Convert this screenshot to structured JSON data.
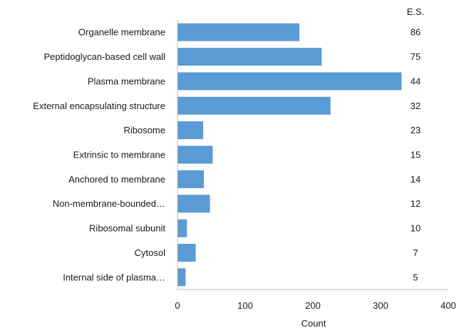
{
  "chart_data": {
    "type": "bar",
    "orientation": "horizontal",
    "categories": [
      "Organelle membrane",
      "Peptidoglycan-based cell wall",
      "Plasma membrane",
      "External encapsulating structure",
      "Ribosome",
      "Extrinsic to membrane",
      "Anchored to membrane",
      "Non-membrane-bounded…",
      "Ribosomal subunit",
      "Cytosol",
      "Internal side of plasma…"
    ],
    "values": [
      180,
      213,
      331,
      226,
      38,
      52,
      39,
      48,
      14,
      27,
      12
    ],
    "es_header": "E.S.",
    "es_values": [
      "86",
      "75",
      "44",
      "32",
      "23",
      "15",
      "14",
      "12",
      "10",
      "7",
      "5"
    ],
    "xlabel": "Count",
    "xlim": [
      0,
      400
    ],
    "xticks": [
      0,
      100,
      200,
      300,
      400
    ],
    "bar_color": "#5b9bd5",
    "grid": false
  }
}
